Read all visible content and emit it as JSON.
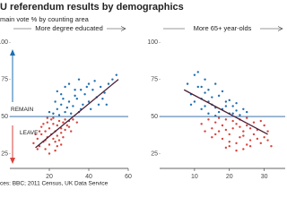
{
  "header": {
    "title": "U referendum results by demographics",
    "subtitle": "main vote % by counting area",
    "source": "ces: BBC; 2011 Census, UK Data Service"
  },
  "chart_data": [
    {
      "type": "scatter",
      "panel_title": "More degree educated",
      "annotations": [
        "REMAIN",
        "LEAVE"
      ],
      "xlim": [
        0,
        60
      ],
      "xticks": [
        20,
        40,
        60
      ],
      "ylim": [
        15,
        105
      ],
      "yticks": [
        25,
        50,
        75,
        100
      ],
      "reference_line": 50,
      "reference_color": "#1f5f9a",
      "series": [
        {
          "color": "#1f6fb0",
          "x": [
            22,
            24,
            26,
            28,
            30,
            32,
            34,
            36,
            38,
            40,
            42,
            44,
            46,
            48,
            50,
            52,
            30,
            28,
            33,
            26,
            35,
            40,
            45,
            25,
            29,
            37,
            41,
            23,
            31,
            39,
            54,
            43,
            27,
            35,
            47,
            33,
            20,
            24,
            49,
            36
          ],
          "values": [
            52,
            55,
            58,
            53,
            60,
            57,
            62,
            55,
            65,
            60,
            68,
            63,
            70,
            66,
            72,
            75,
            72,
            70,
            68,
            65,
            75,
            72,
            58,
            51,
            56,
            58,
            55,
            60,
            52,
            70,
            78,
            74,
            62,
            53,
            62,
            64,
            53,
            67,
            58,
            68
          ]
        },
        {
          "color": "#d9423c",
          "x": [
            12,
            14,
            15,
            16,
            17,
            18,
            19,
            20,
            21,
            22,
            23,
            24,
            25,
            26,
            27,
            28,
            29,
            30,
            18,
            20,
            22,
            24,
            26,
            28,
            16,
            19,
            21,
            23,
            25,
            17,
            15,
            13,
            27,
            30,
            32,
            34,
            14,
            20,
            23,
            26,
            19,
            22,
            31,
            24,
            18
          ],
          "values": [
            32,
            35,
            30,
            38,
            33,
            40,
            36,
            42,
            38,
            45,
            40,
            44,
            47,
            42,
            46,
            48,
            44,
            47,
            28,
            31,
            35,
            37,
            39,
            41,
            43,
            46,
            48,
            33,
            34,
            45,
            40,
            38,
            36,
            43,
            48,
            46,
            28,
            25,
            27,
            31,
            49,
            49,
            40,
            30,
            34
          ]
        }
      ],
      "trend": {
        "color": "#4b1f35",
        "x": [
          13,
          55
        ],
        "values": [
          29,
          75
        ]
      }
    },
    {
      "type": "scatter",
      "panel_title": "More 65+ year-olds",
      "xlim": [
        0,
        36
      ],
      "xticks": [
        10,
        20,
        30
      ],
      "ylim": [
        15,
        105
      ],
      "yticks": [
        25,
        50,
        75,
        100
      ],
      "reference_line": 50,
      "reference_color": "#1f5f9a",
      "series": [
        {
          "color": "#1f6fb0",
          "x": [
            8,
            9,
            10,
            11,
            12,
            13,
            14,
            15,
            16,
            17,
            18,
            19,
            20,
            21,
            22,
            23,
            10,
            12,
            14,
            16,
            11,
            13,
            15,
            17,
            19,
            21,
            24,
            9,
            18,
            20,
            12,
            14,
            16,
            22,
            25,
            13
          ],
          "values": [
            72,
            65,
            78,
            70,
            62,
            75,
            68,
            58,
            72,
            64,
            55,
            60,
            52,
            57,
            54,
            51,
            60,
            55,
            52,
            56,
            80,
            66,
            63,
            53,
            57,
            52,
            55,
            58,
            67,
            61,
            70,
            60,
            50.5,
            59,
            53,
            57
          ]
        },
        {
          "color": "#d9423c",
          "x": [
            12,
            14,
            15,
            16,
            17,
            18,
            19,
            20,
            21,
            22,
            23,
            24,
            25,
            26,
            27,
            28,
            29,
            30,
            31,
            18,
            20,
            22,
            24,
            26,
            16,
            19,
            21,
            23,
            25,
            27,
            28,
            30,
            32,
            17,
            13,
            15,
            20,
            22,
            24,
            26,
            29,
            31,
            19,
            23,
            25
          ],
          "values": [
            45,
            48,
            42,
            46,
            40,
            44,
            48,
            38,
            42,
            45,
            36,
            40,
            44,
            34,
            38,
            41,
            32,
            36,
            40,
            35,
            30,
            32,
            28,
            30,
            38,
            41,
            47,
            43,
            49,
            46,
            35,
            44,
            30,
            49,
            40,
            36,
            33,
            27,
            37,
            42,
            47,
            34,
            29,
            48,
            31
          ]
        }
      ],
      "trend": {
        "color": "#4b1f35",
        "x": [
          7,
          31
        ],
        "values": [
          68,
          38
        ]
      }
    }
  ]
}
